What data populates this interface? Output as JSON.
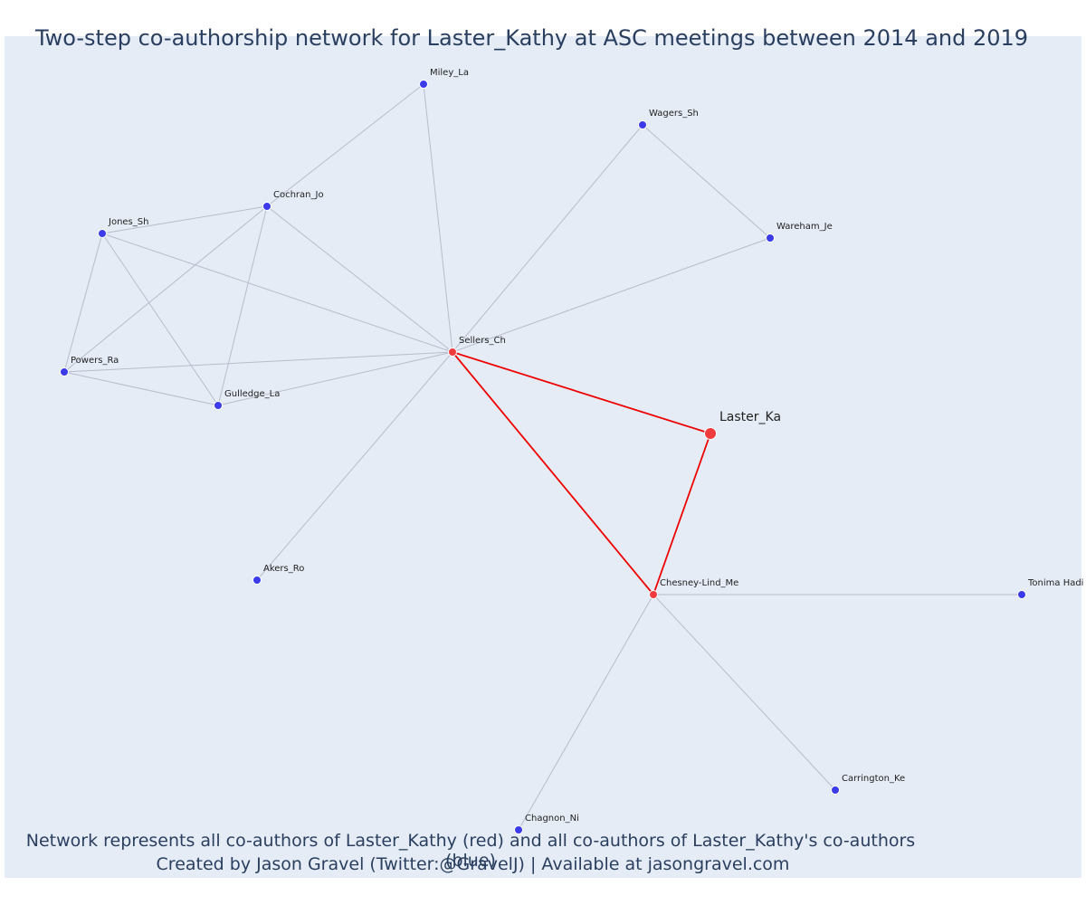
{
  "title": "Two-step co-authorship network for Laster_Kathy at ASC meetings between 2014 and 2019",
  "footer": {
    "line1": "Network represents all co-authors of Laster_Kathy (red) and all co-authors of Laster_Kathy's co-authors (blue)",
    "line2": "Created by Jason Gravel (Twitter:@GravelJ) | Available at jasongravel.com"
  },
  "colors": {
    "background": "#e5ecf6",
    "ego_edge": "#ee0000",
    "other_edge": "#b8bccb",
    "red_node": "#ef3b3b",
    "blue_node": "#3b3bea"
  },
  "nodes": [
    {
      "id": "Laster_Ka",
      "group": "ego"
    },
    {
      "id": "Sellers_Ch",
      "group": "red"
    },
    {
      "id": "Chesney-Lind_Me",
      "group": "red"
    },
    {
      "id": "Miley_La",
      "group": "blue"
    },
    {
      "id": "Wagers_Sh",
      "group": "blue"
    },
    {
      "id": "Wareham_Je",
      "group": "blue"
    },
    {
      "id": "Cochran_Jo",
      "group": "blue"
    },
    {
      "id": "Jones_Sh",
      "group": "blue"
    },
    {
      "id": "Powers_Ra",
      "group": "blue"
    },
    {
      "id": "Gulledge_La",
      "group": "blue"
    },
    {
      "id": "Akers_Ro",
      "group": "blue"
    },
    {
      "id": "Tonima Hadi",
      "group": "blue"
    },
    {
      "id": "Carrington_Ke",
      "group": "blue"
    },
    {
      "id": "Chagnon_Ni",
      "group": "blue"
    }
  ],
  "edges": [
    [
      "Sellers_Ch",
      "Laster_Ka",
      "ego"
    ],
    [
      "Sellers_Ch",
      "Chesney-Lind_Me",
      "ego"
    ],
    [
      "Laster_Ka",
      "Chesney-Lind_Me",
      "ego"
    ],
    [
      "Miley_La",
      "Cochran_Jo",
      "other"
    ],
    [
      "Miley_La",
      "Sellers_Ch",
      "other"
    ],
    [
      "Wagers_Sh",
      "Wareham_Je",
      "other"
    ],
    [
      "Wagers_Sh",
      "Sellers_Ch",
      "other"
    ],
    [
      "Wareham_Je",
      "Sellers_Ch",
      "other"
    ],
    [
      "Cochran_Jo",
      "Jones_Sh",
      "other"
    ],
    [
      "Cochran_Jo",
      "Powers_Ra",
      "other"
    ],
    [
      "Cochran_Jo",
      "Gulledge_La",
      "other"
    ],
    [
      "Cochran_Jo",
      "Sellers_Ch",
      "other"
    ],
    [
      "Jones_Sh",
      "Powers_Ra",
      "other"
    ],
    [
      "Jones_Sh",
      "Gulledge_La",
      "other"
    ],
    [
      "Jones_Sh",
      "Sellers_Ch",
      "other"
    ],
    [
      "Powers_Ra",
      "Gulledge_La",
      "other"
    ],
    [
      "Powers_Ra",
      "Sellers_Ch",
      "other"
    ],
    [
      "Gulledge_La",
      "Sellers_Ch",
      "other"
    ],
    [
      "Akers_Ro",
      "Sellers_Ch",
      "other"
    ],
    [
      "Chesney-Lind_Me",
      "Tonima Hadi",
      "other"
    ],
    [
      "Chesney-Lind_Me",
      "Carrington_Ke",
      "other"
    ],
    [
      "Chesney-Lind_Me",
      "Chagnon_Ni",
      "other"
    ]
  ]
}
